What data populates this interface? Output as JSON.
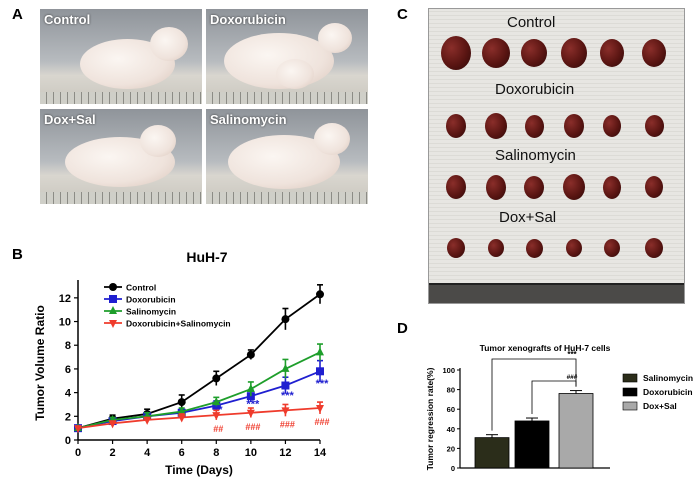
{
  "panels": {
    "a": {
      "letter": "A",
      "photos": [
        "Control",
        "Doxorubicin",
        "Dox+Sal",
        "Salinomycin"
      ]
    },
    "b": {
      "letter": "B"
    },
    "c": {
      "letter": "C",
      "rows": [
        "Control",
        "Doxorubicin",
        "Salinomycin",
        "Dox+Sal"
      ]
    },
    "d": {
      "letter": "D"
    }
  },
  "chart_data": [
    {
      "type": "line",
      "title": "HuH-7",
      "xlabel": "Time (Days)",
      "ylabel": "Tumor Volume Ratio",
      "xlim": [
        0,
        14
      ],
      "ylim": [
        0,
        13
      ],
      "xticks": [
        "0",
        "2",
        "4",
        "6",
        "8",
        "10",
        "12",
        "14"
      ],
      "yticks": [
        "0",
        "2",
        "4",
        "6",
        "8",
        "10",
        "12"
      ],
      "x": [
        0,
        2,
        4,
        6,
        8,
        10,
        12,
        14
      ],
      "series": [
        {
          "name": "Control",
          "color": "#000000",
          "marker": "circle",
          "values": [
            1.0,
            1.8,
            2.2,
            3.2,
            5.2,
            7.2,
            10.2,
            12.3
          ],
          "errors": [
            0.1,
            0.3,
            0.4,
            0.6,
            0.6,
            0.4,
            0.9,
            0.8
          ]
        },
        {
          "name": "Doxorubicin",
          "color": "#1f1fd0",
          "marker": "square",
          "values": [
            1.0,
            1.6,
            2.0,
            2.3,
            2.9,
            3.7,
            4.6,
            5.8
          ],
          "errors": [
            0.1,
            0.2,
            0.3,
            0.3,
            0.4,
            0.5,
            0.7,
            0.9
          ]
        },
        {
          "name": "Salinomycin",
          "color": "#1e9e2b",
          "marker": "triangle-up",
          "values": [
            1.0,
            1.7,
            2.0,
            2.4,
            3.2,
            4.3,
            6.0,
            7.4
          ],
          "errors": [
            0.1,
            0.2,
            0.3,
            0.3,
            0.4,
            0.6,
            0.8,
            0.7
          ]
        },
        {
          "name": "Doxorubicin+Salinomycin",
          "color": "#ef3b2c",
          "marker": "triangle-down",
          "values": [
            1.0,
            1.4,
            1.7,
            1.9,
            2.1,
            2.3,
            2.5,
            2.7
          ],
          "errors": [
            0.1,
            0.2,
            0.2,
            0.3,
            0.4,
            0.4,
            0.5,
            0.5
          ]
        }
      ],
      "annotations": [
        {
          "x": 8,
          "y": 2.6,
          "text": "**",
          "color": "#1f1fd0"
        },
        {
          "x": 10,
          "y": 3.1,
          "text": "***",
          "color": "#1f1fd0"
        },
        {
          "x": 12,
          "y": 3.8,
          "text": "***",
          "color": "#1f1fd0"
        },
        {
          "x": 14,
          "y": 4.8,
          "text": "***",
          "color": "#1f1fd0"
        },
        {
          "x": 8,
          "y": 1.0,
          "text": "##",
          "color": "#ef3b2c"
        },
        {
          "x": 10,
          "y": 1.2,
          "text": "###",
          "color": "#ef3b2c"
        },
        {
          "x": 12,
          "y": 1.4,
          "text": "###",
          "color": "#ef3b2c"
        },
        {
          "x": 14,
          "y": 1.6,
          "text": "###",
          "color": "#ef3b2c"
        }
      ]
    },
    {
      "type": "bar",
      "title": "Tumor xenografts of HuH-7 cells",
      "ylabel": "Tumor regression rate(%)",
      "ylim": [
        0,
        100
      ],
      "yticks": [
        "0",
        "20",
        "40",
        "60",
        "80",
        "100"
      ],
      "categories": [
        "Salinomycin",
        "Doxorubicin",
        "Dox+Sal"
      ],
      "values": [
        31,
        48,
        76
      ],
      "errors": [
        3,
        3,
        3
      ],
      "colors": [
        "#2b2d1a",
        "#000000",
        "#a9a9a9"
      ],
      "significance": [
        {
          "from": 0,
          "to": 2,
          "text": "***"
        },
        {
          "from": 1,
          "to": 2,
          "text": "###"
        }
      ]
    }
  ]
}
